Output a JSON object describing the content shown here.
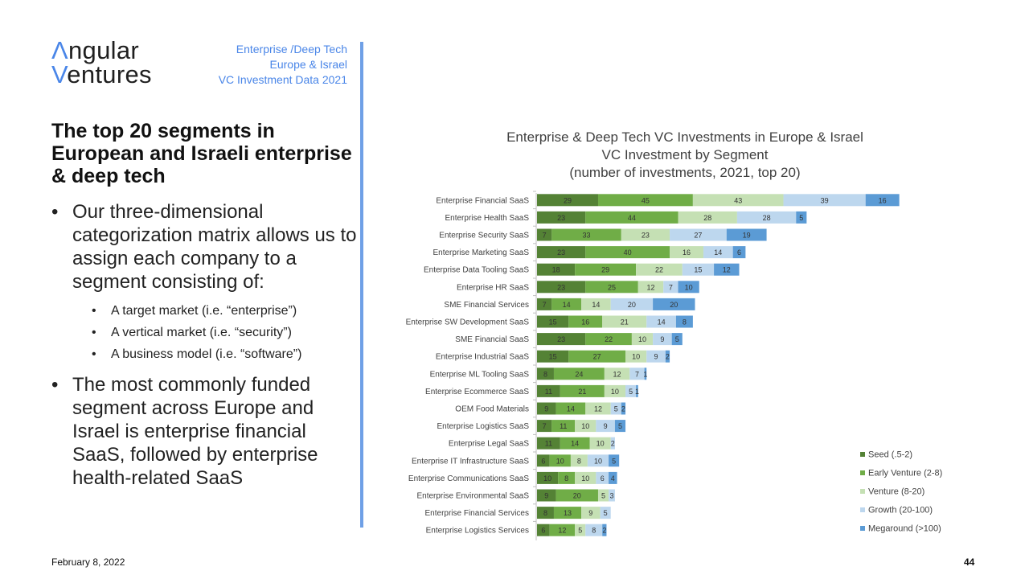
{
  "logo": {
    "line1_mark": "Λ",
    "line1_rest": "ngular",
    "line2_mark": "V",
    "line2_rest": "entures"
  },
  "deck_tag": [
    "Enterprise /Deep Tech",
    "Europe & Israel",
    "VC Investment Data 2021"
  ],
  "headline": "The top 20 segments in European and Israeli enterprise & deep tech",
  "bullets": {
    "b1": "Our three-dimensional categorization matrix allows us to assign each company to a segment consisting of:",
    "subs": [
      "A target market (i.e. “enterprise”)",
      "A vertical market (i.e. “security”)",
      "A business model (i.e. “software”)"
    ],
    "b2": "The most commonly funded segment across Europe and Israel is enterprise financial SaaS, followed by enterprise health-related SaaS"
  },
  "footer": {
    "date": "February 8, 2022",
    "page": "44"
  },
  "colors": {
    "accent": "#4a86e8",
    "seed": "#548235",
    "early": "#70ad47",
    "venture": "#c5e0b4",
    "growth": "#bdd7ee",
    "mega": "#5b9bd5"
  },
  "chart_data": {
    "type": "bar",
    "orientation": "horizontal",
    "stacked": true,
    "title": [
      "Enterprise & Deep Tech VC Investments in Europe & Israel",
      "VC Investment by Segment",
      "(number of investments, 2021, top 20)"
    ],
    "categories": [
      "Enterprise Financial SaaS",
      "Enterprise Health SaaS",
      "Enterprise Security SaaS",
      "Enterprise Marketing SaaS",
      "Enterprise Data Tooling SaaS",
      "Enterprise HR SaaS",
      "SME Financial Services",
      "Enterprise SW Development SaaS",
      "SME Financial SaaS",
      "Enterprise Industrial SaaS",
      "Enterprise ML Tooling SaaS",
      "Enterprise Ecommerce SaaS",
      "OEM Food Materials",
      "Enterprise Logistics SaaS",
      "Enterprise Legal SaaS",
      "Enterprise IT Infrastructure SaaS",
      "Enterprise Communications SaaS",
      "Enterprise Environmental SaaS",
      "Enterprise Financial Services",
      "Enterprise Logistics Services"
    ],
    "series": [
      {
        "name": "Seed (.5-2)",
        "color": "#548235",
        "values": [
          29,
          23,
          7,
          23,
          18,
          23,
          7,
          15,
          23,
          15,
          8,
          11,
          9,
          7,
          11,
          6,
          10,
          9,
          8,
          6
        ]
      },
      {
        "name": "Early Venture (2-8)",
        "color": "#70ad47",
        "values": [
          45,
          44,
          33,
          40,
          29,
          25,
          14,
          16,
          22,
          27,
          24,
          21,
          14,
          11,
          14,
          10,
          8,
          20,
          13,
          12
        ]
      },
      {
        "name": "Venture (8-20)",
        "color": "#c5e0b4",
        "values": [
          43,
          28,
          23,
          16,
          22,
          12,
          14,
          21,
          10,
          10,
          12,
          10,
          12,
          10,
          10,
          8,
          10,
          5,
          9,
          5
        ]
      },
      {
        "name": "Growth (20-100)",
        "color": "#bdd7ee",
        "values": [
          39,
          28,
          27,
          14,
          15,
          7,
          20,
          14,
          9,
          9,
          7,
          5,
          5,
          9,
          2,
          10,
          6,
          3,
          5,
          8
        ]
      },
      {
        "name": "Megaround (>100)",
        "color": "#5b9bd5",
        "values": [
          16,
          5,
          19,
          6,
          12,
          10,
          20,
          8,
          5,
          2,
          1,
          1,
          2,
          5,
          0,
          5,
          4,
          0,
          0,
          2
        ]
      }
    ],
    "legend_position": "bottom-right",
    "grid": false
  }
}
